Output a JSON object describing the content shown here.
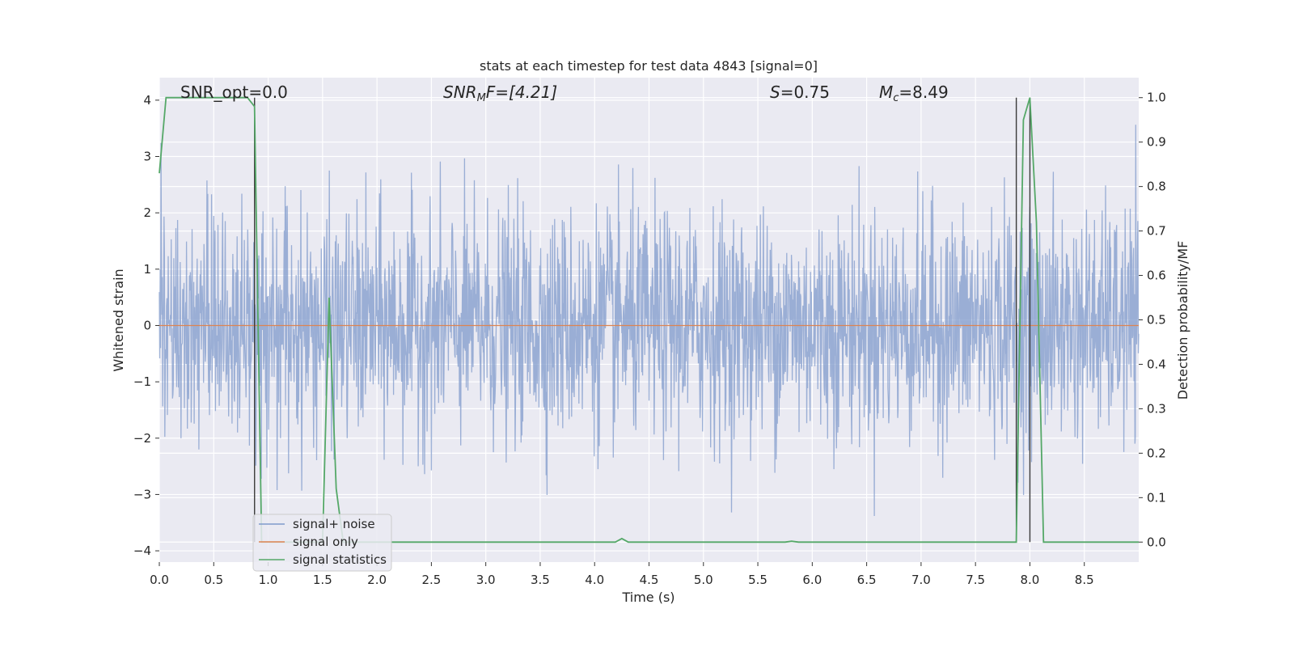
{
  "chart_data": {
    "type": "line",
    "title": "stats at each timestep for test data 4843 [signal=0]",
    "xlabel": "Time (s)",
    "ylabel_left": "Whitened strain",
    "ylabel_right": "Detection probability/MF",
    "xlim": [
      0,
      9
    ],
    "ylim_left": [
      -4.2,
      4.4
    ],
    "ylim_right": [
      -0.045,
      1.045
    ],
    "x_ticks": [
      "0.0",
      "0.5",
      "1.0",
      "1.5",
      "2.0",
      "2.5",
      "3.0",
      "3.5",
      "4.0",
      "4.5",
      "5.0",
      "5.5",
      "6.0",
      "6.5",
      "7.0",
      "7.5",
      "8.0",
      "8.5"
    ],
    "y_ticks_left": [
      "4",
      "3",
      "2",
      "1",
      "0",
      "−1",
      "−2",
      "−3",
      "−4"
    ],
    "y_ticks_right": [
      "1.0",
      "0.9",
      "0.8",
      "0.7",
      "0.6",
      "0.5",
      "0.4",
      "0.3",
      "0.2",
      "0.1",
      "0.0"
    ],
    "grid": true,
    "legend_position": "lower-left",
    "annotations": {
      "snr_opt": "SNR_opt=0.0",
      "snr_mf_main": "SNR",
      "snr_mf_sub": "M",
      "snr_mf_rest": "F=[4.21]",
      "s_main": "S",
      "s_rest": "=0.75",
      "mc_main": "M",
      "mc_sub": "c",
      "mc_rest": "=8.49"
    },
    "series": [
      {
        "name": "signal+ noise",
        "color": "#7f9acb",
        "axis": "left",
        "description_style": "dense noise, roughly gaussian, range about -3.6 to 4.0",
        "x_range": [
          0,
          9
        ],
        "sample_rate_hz": 256,
        "approx_std": 1.0
      },
      {
        "name": "signal only",
        "color": "#dd8452",
        "axis": "left",
        "x": [
          0,
          9
        ],
        "y": [
          0,
          0
        ]
      },
      {
        "name": "signal statistics",
        "color": "#55a868",
        "axis": "right",
        "x": [
          0.0,
          0.062,
          0.125,
          0.188,
          0.25,
          0.5,
          0.75,
          0.81,
          0.875,
          0.94,
          1.0,
          1.5,
          1.56,
          1.625,
          1.69,
          2.0,
          4.19,
          4.25,
          4.31,
          4.5,
          5.75,
          5.81,
          5.875,
          7.81,
          7.875,
          7.94,
          8.0,
          8.06,
          8.125,
          8.19,
          8.25,
          9.0
        ],
        "y": [
          0.83,
          1.0,
          1.0,
          1.0,
          1.0,
          1.0,
          1.0,
          1.0,
          0.98,
          0.0,
          0.0,
          0.0,
          0.55,
          0.12,
          0.0,
          0.0,
          0.0,
          0.008,
          0.0,
          0.0,
          0.0,
          0.002,
          0.0,
          0.0,
          0.0,
          0.95,
          1.0,
          0.72,
          0.0,
          0.0,
          0.0,
          0.0
        ]
      }
    ],
    "vertical_markers": [
      {
        "x": 0.875,
        "y_from_right": 0.0,
        "y_to_right": 1.0,
        "color": "#3a3a3a"
      },
      {
        "x": 7.875,
        "y_from_right": 0.0,
        "y_to_right": 1.0,
        "color": "#3a3a3a"
      },
      {
        "x": 8.0,
        "y_from_right": 0.0,
        "y_to_right": 1.0,
        "color": "#3a3a3a"
      }
    ]
  }
}
